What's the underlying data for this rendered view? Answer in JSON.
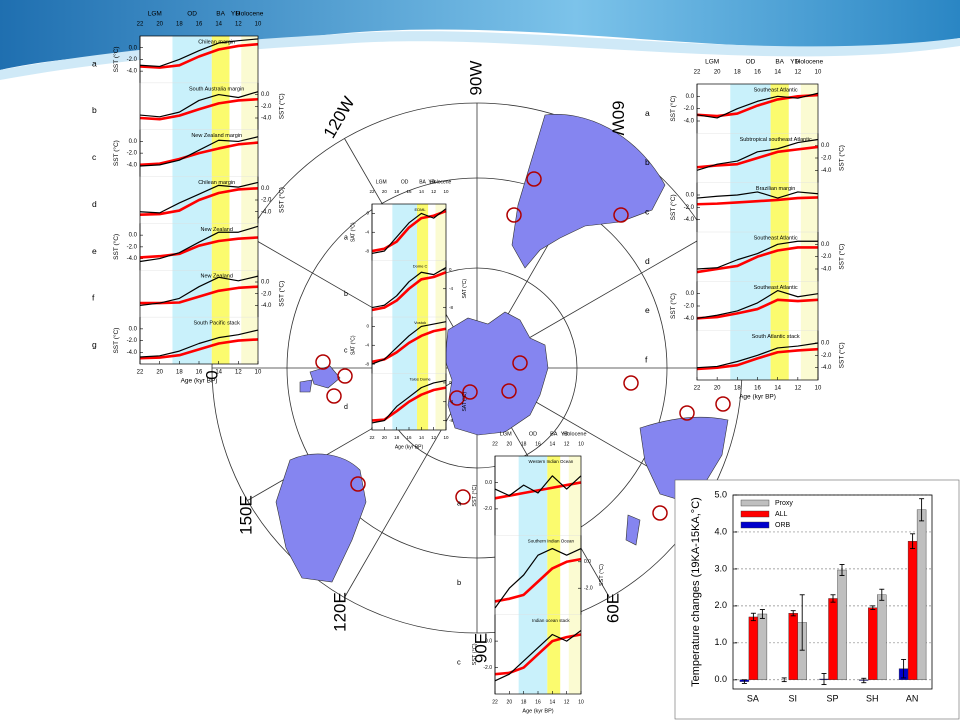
{
  "map": {
    "labels": [
      "90W",
      "120W",
      "60W",
      "0",
      "150E",
      "120E",
      "60E",
      "90E"
    ]
  },
  "time_series": {
    "xlim": [
      22,
      10
    ],
    "xticks": [
      22,
      20,
      18,
      16,
      14,
      12,
      10
    ],
    "xlabel": "Age (kyr BP)",
    "proxy_color": "#ff0000",
    "model_color": "#000000",
    "x": [
      22,
      20,
      18,
      16,
      14,
      12,
      10
    ],
    "periods": [
      {
        "label": "LGM",
        "start": 22,
        "end": 19
      },
      {
        "label": "OD",
        "start": 18.7,
        "end": 14.7,
        "color": "#c9f1fb"
      },
      {
        "label": "BA",
        "start": 14.7,
        "end": 12.9,
        "color": "#fbfb6e"
      },
      {
        "label": "YD",
        "start": 12.9,
        "end": 11.7
      },
      {
        "label": "Holocene",
        "start": 11.7,
        "end": 10,
        "color": "#fbfbd2"
      }
    ],
    "panels": [
      {
        "ylabel": "SST (°C)",
        "subpanels": [
          {
            "letter": "a",
            "name": "Chilean margin",
            "side": "left",
            "ylim": [
              -6,
              2
            ],
            "yticks": [
              {
                "value": -4,
                "label": "-4.0"
              },
              {
                "value": -2,
                "label": "-2.0"
              },
              {
                "value": 0,
                "label": "0.0"
              }
            ],
            "proxy": [
              -3.2,
              -3.4,
              -3.0,
              -1.5,
              -0.3,
              0.3,
              0.6
            ],
            "model": [
              -3.0,
              -3.2,
              -2.0,
              -0.5,
              0.8,
              1.2,
              1.5
            ]
          },
          {
            "letter": "b",
            "name": "South Australia margin",
            "side": "right",
            "ylim": [
              -6,
              2
            ],
            "yticks": [
              {
                "value": -4,
                "label": "-4.0"
              },
              {
                "value": -2,
                "label": "-2.0"
              },
              {
                "value": 0,
                "label": "0.0"
              }
            ],
            "proxy": [
              -4.0,
              -4.2,
              -3.6,
              -2.5,
              -1.5,
              -1.0,
              -0.8
            ],
            "model": [
              -3.5,
              -3.8,
              -3.0,
              -1.0,
              0.0,
              -0.5,
              0.5
            ]
          },
          {
            "letter": "c",
            "name": "New Zealand margin",
            "side": "left",
            "ylim": [
              -6,
              2
            ],
            "yticks": [
              {
                "value": -4,
                "label": "-4.0"
              },
              {
                "value": -2,
                "label": "-2.0"
              },
              {
                "value": 0,
                "label": "0.0"
              }
            ],
            "proxy": [
              -4.0,
              -3.8,
              -3.0,
              -2.0,
              -1.2,
              -0.5,
              -0.2
            ],
            "model": [
              -4.2,
              -4.0,
              -3.2,
              -1.5,
              0.2,
              0.0,
              0.8
            ]
          },
          {
            "letter": "d",
            "name": "Chilean margin",
            "side": "right",
            "ylim": [
              -6,
              2
            ],
            "yticks": [
              {
                "value": -4,
                "label": "-4.0"
              },
              {
                "value": -2,
                "label": "-2.0"
              },
              {
                "value": 0,
                "label": "0.0"
              }
            ],
            "proxy": [
              -4.5,
              -4.4,
              -3.8,
              -2.0,
              -0.8,
              -0.2,
              0.0
            ],
            "model": [
              -4.0,
              -4.2,
              -2.5,
              -1.0,
              0.5,
              0.2,
              1.0
            ]
          },
          {
            "letter": "e",
            "name": "New Zealand",
            "side": "left",
            "ylim": [
              -6,
              2
            ],
            "yticks": [
              {
                "value": -4,
                "label": "-4.0"
              },
              {
                "value": -2,
                "label": "-2.0"
              },
              {
                "value": 0,
                "label": "0.0"
              }
            ],
            "proxy": [
              -3.8,
              -3.6,
              -3.2,
              -1.8,
              -1.0,
              -0.6,
              -0.4
            ],
            "model": [
              -4.5,
              -4.0,
              -3.0,
              -1.2,
              0.5,
              0.5,
              1.5
            ]
          },
          {
            "letter": "f",
            "name": "New Zealand",
            "side": "right",
            "ylim": [
              -6,
              2
            ],
            "yticks": [
              {
                "value": -4,
                "label": "-4.0"
              },
              {
                "value": -2,
                "label": "-2.0"
              },
              {
                "value": 0,
                "label": "0.0"
              }
            ],
            "proxy": [
              -3.6,
              -3.6,
              -3.5,
              -2.5,
              -1.5,
              -1.0,
              -0.8
            ],
            "model": [
              -4.0,
              -3.6,
              -2.8,
              -0.8,
              0.8,
              0.2,
              1.0
            ]
          },
          {
            "letter": "g",
            "name": "South Pacific stack",
            "side": "left",
            "ylim": [
              -6,
              2
            ],
            "yticks": [
              {
                "value": -4,
                "label": "-4.0"
              },
              {
                "value": -2,
                "label": "-2.0"
              },
              {
                "value": 0,
                "label": "0.0"
              }
            ],
            "proxy": [
              -5.0,
              -4.9,
              -4.5,
              -3.5,
              -2.5,
              -2.0,
              -1.8
            ],
            "model": [
              -4.8,
              -4.6,
              -3.8,
              -2.5,
              -1.5,
              -1.0,
              -0.2
            ]
          }
        ]
      },
      {
        "ylabel": "SST (°C)",
        "subpanels": [
          {
            "letter": "a",
            "name": "Southeast Atlantic",
            "side": "left",
            "ylim": [
              -6,
              2
            ],
            "yticks": [
              {
                "value": -4,
                "label": "-4.0"
              },
              {
                "value": -2,
                "label": "-2.0"
              },
              {
                "value": 0,
                "label": "0.0"
              }
            ],
            "proxy": [
              -3.0,
              -3.2,
              -2.8,
              -1.5,
              -0.5,
              0.0,
              0.2
            ],
            "model": [
              -3.0,
              -3.5,
              -2.0,
              -0.8,
              0.0,
              -0.3,
              0.5
            ]
          },
          {
            "letter": "b",
            "name": "Subtropical southeast Atlantic",
            "side": "right",
            "ylim": [
              -6,
              2
            ],
            "yticks": [
              {
                "value": -4,
                "label": "-4.0"
              },
              {
                "value": -2,
                "label": "-2.0"
              },
              {
                "value": 0,
                "label": "0.0"
              }
            ],
            "proxy": [
              -3.5,
              -3.2,
              -3.0,
              -2.0,
              -1.0,
              -0.6,
              -0.2
            ],
            "model": [
              -4.0,
              -3.0,
              -2.5,
              -1.0,
              -0.5,
              0.5,
              1.0
            ]
          },
          {
            "letter": "c",
            "name": "Brazilian margin",
            "side": "left",
            "ylim": [
              -6,
              2
            ],
            "yticks": [
              {
                "value": -4,
                "label": "-4.0"
              },
              {
                "value": -2,
                "label": "-2.0"
              },
              {
                "value": 0,
                "label": "0.0"
              }
            ],
            "proxy": [
              -1.5,
              -1.4,
              -1.2,
              -1.0,
              -0.8,
              -0.5,
              -0.4
            ],
            "model": [
              -0.5,
              -0.2,
              0.0,
              0.5,
              -0.5,
              0.5,
              0.2
            ]
          },
          {
            "letter": "d",
            "name": "Southeast Atlantic",
            "side": "right",
            "ylim": [
              -6,
              2
            ],
            "yticks": [
              {
                "value": -4,
                "label": "-4.0"
              },
              {
                "value": -2,
                "label": "-2.0"
              },
              {
                "value": 0,
                "label": "0.0"
              }
            ],
            "proxy": [
              -4.5,
              -4.0,
              -3.5,
              -2.0,
              -1.0,
              -0.5,
              -0.5
            ],
            "model": [
              -4.0,
              -3.8,
              -2.5,
              -1.5,
              0.0,
              0.5,
              0.5
            ]
          },
          {
            "letter": "e",
            "name": "Southeast Atlantic",
            "side": "left",
            "ylim": [
              -6,
              2
            ],
            "yticks": [
              {
                "value": -4,
                "label": "-4.0"
              },
              {
                "value": -2,
                "label": "-2.0"
              },
              {
                "value": 0,
                "label": "0.0"
              }
            ],
            "proxy": [
              -4.0,
              -3.8,
              -3.2,
              -2.5,
              -1.0,
              -1.2,
              -1.0
            ],
            "model": [
              -4.0,
              -3.5,
              -2.8,
              -1.5,
              0.5,
              -0.5,
              0.0
            ]
          },
          {
            "letter": "f",
            "name": "South Atlantic stack",
            "side": "right",
            "ylim": [
              -6,
              2
            ],
            "yticks": [
              {
                "value": -4,
                "label": "-4.0"
              },
              {
                "value": -2,
                "label": "-2.0"
              },
              {
                "value": 0,
                "label": "0.0"
              }
            ],
            "proxy": [
              -4.2,
              -4.0,
              -3.6,
              -2.5,
              -1.5,
              -1.2,
              -1.0
            ],
            "model": [
              -4.0,
              -3.8,
              -3.0,
              -2.0,
              -0.8,
              -0.5,
              0.0
            ]
          }
        ]
      },
      {
        "ylabel": "SAT (°C)",
        "subpanels": [
          {
            "letter": "a",
            "name": "EDML",
            "side": "left",
            "ylim": [
              -10,
              2
            ],
            "yticks": [
              -8,
              -4,
              0
            ],
            "proxy": [
              -8.0,
              -7.5,
              -6.0,
              -3.0,
              -1.0,
              -0.5,
              0.5
            ],
            "model": [
              -8.5,
              -8.0,
              -5.0,
              -2.0,
              0.0,
              -1.0,
              1.0
            ]
          },
          {
            "letter": "b",
            "name": "Dome C",
            "side": "right",
            "ylim": [
              -10,
              2
            ],
            "yticks": [
              -8,
              -4,
              0
            ],
            "proxy": [
              -8.5,
              -8.0,
              -6.5,
              -4.0,
              -2.0,
              -1.5,
              -0.5
            ],
            "model": [
              -8.0,
              -7.5,
              -5.5,
              -2.5,
              -0.5,
              -1.0,
              0.5
            ]
          },
          {
            "letter": "c",
            "name": "Vostok",
            "side": "left",
            "ylim": [
              -10,
              2
            ],
            "yticks": [
              -8,
              -4,
              0
            ],
            "proxy": [
              -7.5,
              -7.0,
              -5.5,
              -3.5,
              -2.0,
              -1.0,
              -0.5
            ],
            "model": [
              -8.0,
              -7.0,
              -4.5,
              -2.0,
              0.0,
              0.5,
              1.0
            ]
          },
          {
            "letter": "d",
            "name": "Talos Dome",
            "side": "right",
            "ylim": [
              -10,
              2
            ],
            "yticks": [
              -8,
              -4,
              0
            ],
            "proxy": [
              -8.0,
              -7.8,
              -6.0,
              -4.0,
              -2.5,
              -1.5,
              -1.0
            ],
            "model": [
              -8.5,
              -8.0,
              -5.0,
              -3.0,
              -1.0,
              0.0,
              0.5
            ]
          }
        ]
      },
      {
        "ylabel": "SST (°C)",
        "subpanels": [
          {
            "letter": "a",
            "name": "Western Indian Ocean",
            "side": "left",
            "ylim": [
              -4,
              2
            ],
            "yticks": [
              {
                "value": -2,
                "label": "-2.0"
              },
              {
                "value": 0,
                "label": "0.0"
              }
            ],
            "proxy": [
              -1.2,
              -1.0,
              -0.8,
              -0.6,
              -0.4,
              -0.2,
              0.0
            ],
            "model": [
              -0.5,
              -1.0,
              -0.2,
              -0.8,
              0.5,
              -0.5,
              0.5
            ]
          },
          {
            "letter": "b",
            "name": "Southern Indian Ocean",
            "side": "right",
            "ylim": [
              -4,
              2
            ],
            "yticks": [
              {
                "value": -2,
                "label": "-2.0"
              },
              {
                "value": 0,
                "label": "0.0"
              }
            ],
            "proxy": [
              -3.0,
              -2.8,
              -2.5,
              -1.5,
              -0.5,
              0.0,
              0.2
            ],
            "model": [
              -3.5,
              -2.0,
              -1.0,
              0.5,
              1.0,
              0.5,
              1.0
            ]
          },
          {
            "letter": "c",
            "name": "Indian ocean stack",
            "side": "left",
            "ylim": [
              -4,
              2
            ],
            "yticks": [
              {
                "value": -2,
                "label": "-2.0"
              },
              {
                "value": 0,
                "label": "0.0"
              }
            ],
            "proxy": [
              -2.5,
              -2.4,
              -2.0,
              -1.0,
              0.0,
              0.3,
              0.5
            ],
            "model": [
              -3.0,
              -2.5,
              -1.5,
              -0.5,
              0.5,
              0.0,
              0.8
            ]
          }
        ]
      }
    ]
  },
  "chart_data": {
    "type": "bar",
    "ylabel": "Temperature changes (19KA-15KA,°C)",
    "categories": [
      "SA",
      "SI",
      "SP",
      "SH",
      "AN"
    ],
    "series": [
      {
        "name": "ORB",
        "color": "#0000cc",
        "values": [
          -0.05,
          0.0,
          0.02,
          -0.02,
          0.3
        ],
        "errors": [
          0.05,
          0.05,
          0.15,
          0.06,
          0.25
        ]
      },
      {
        "name": "ALL",
        "color": "#ff0000",
        "values": [
          1.7,
          1.8,
          2.2,
          1.95,
          3.75
        ],
        "errors": [
          0.1,
          0.07,
          0.1,
          0.05,
          0.2
        ]
      },
      {
        "name": "Proxy",
        "color": "#bfbfbf",
        "values": [
          1.78,
          1.55,
          2.97,
          2.3,
          4.6
        ],
        "errors": [
          0.12,
          0.75,
          0.15,
          0.15,
          0.3
        ]
      }
    ],
    "legend_order": [
      "Proxy",
      "ALL",
      "ORB"
    ],
    "ylim": [
      -0.25,
      5.0
    ],
    "yticks": [
      {
        "value": 0,
        "label": "0.0"
      },
      {
        "value": 1,
        "label": "1.0"
      },
      {
        "value": 2,
        "label": "2.0"
      },
      {
        "value": 3,
        "label": "3.0"
      },
      {
        "value": 4,
        "label": "4.0"
      },
      {
        "value": 5,
        "label": "5.0"
      }
    ],
    "grid": true
  }
}
